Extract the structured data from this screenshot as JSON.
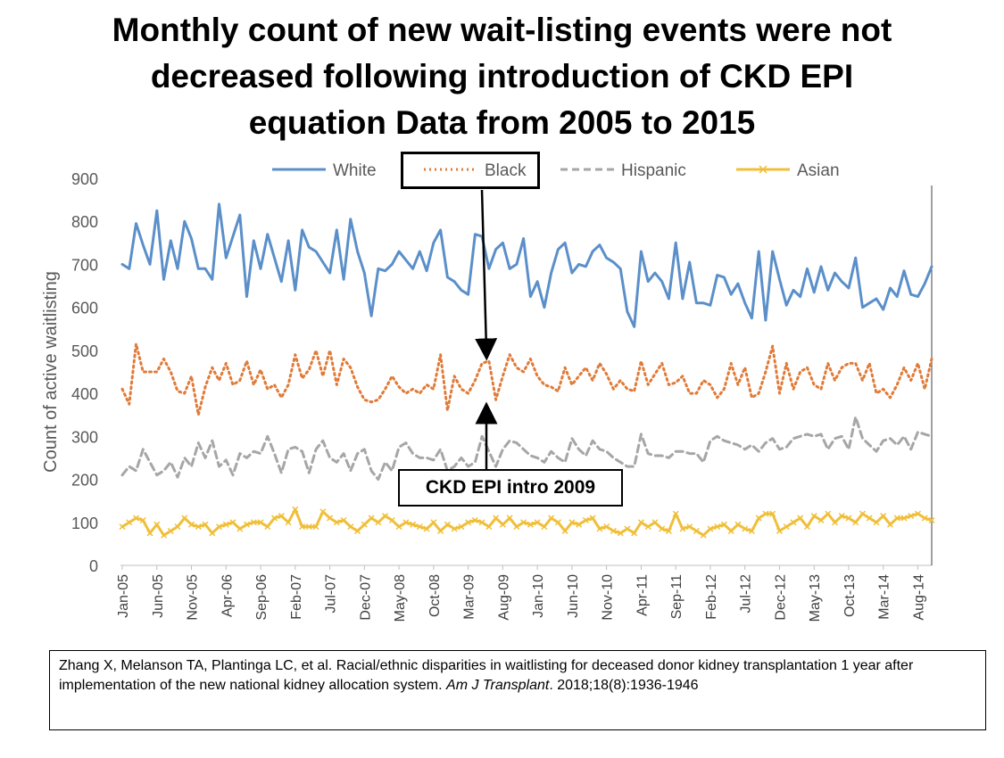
{
  "slide": {
    "title_lines": [
      "Monthly count of new wait-listing events were not",
      "decreased following introduction of CKD EPI",
      "equation  Data from 2005 to 2015"
    ]
  },
  "annotation": {
    "label": "CKD EPI intro 2009"
  },
  "citation": {
    "pre": "Zhang X, Melanson TA, Plantinga LC, et al. Racial/ethnic disparities in waitlisting for deceased donor kidney transplantation 1 year after implementation of the new national kidney allocation system. ",
    "journal": "Am J Transplant",
    "post": ". 2018;18(8):1936-1946"
  },
  "chart_data": {
    "type": "line",
    "title": "",
    "xlabel": "",
    "ylabel": "Count of active waitlisting",
    "ylim": [
      0,
      900
    ],
    "yticks": [
      0,
      100,
      200,
      300,
      400,
      500,
      600,
      700,
      800,
      900
    ],
    "x_start": "Jan-05",
    "n_months": 118,
    "grid": false,
    "legend": "top",
    "categories_shown": [
      "Jan-05",
      "Jun-05",
      "Nov-05",
      "Apr-06",
      "Sep-06",
      "Feb-07",
      "Jul-07",
      "Dec-07",
      "May-08",
      "Oct-08",
      "Mar-09",
      "Aug-09",
      "Jan-10",
      "Jun-10",
      "Nov-10",
      "Apr-11",
      "Sep-11",
      "Feb-12",
      "Jul-12",
      "Dec-12",
      "May-13",
      "Oct-13",
      "Mar-14",
      "Aug-14"
    ],
    "series": [
      {
        "name": "White",
        "color": "#5b8fc9",
        "style": "solid",
        "values": [
          700,
          690,
          795,
          745,
          700,
          825,
          665,
          755,
          690,
          800,
          760,
          690,
          690,
          665,
          840,
          715,
          765,
          815,
          625,
          755,
          690,
          770,
          715,
          660,
          755,
          640,
          780,
          740,
          730,
          705,
          680,
          780,
          665,
          805,
          730,
          680,
          580,
          690,
          685,
          700,
          730,
          710,
          690,
          730,
          685,
          750,
          780,
          670,
          660,
          640,
          630,
          770,
          765,
          690,
          735,
          750,
          690,
          700,
          760,
          625,
          660,
          600,
          680,
          735,
          750,
          680,
          700,
          695,
          730,
          745,
          715,
          705,
          690,
          590,
          555,
          730,
          660,
          680,
          660,
          620,
          750,
          620,
          705,
          610,
          610,
          605,
          675,
          670,
          630,
          655,
          610,
          575,
          730,
          570,
          730,
          665,
          605,
          640,
          625,
          690,
          635,
          695,
          640,
          680,
          660,
          645,
          715,
          600,
          610,
          620,
          595,
          645,
          625,
          685,
          630,
          625,
          655,
          695
        ]
      },
      {
        "name": "Black",
        "color": "#e07b39",
        "style": "dotted",
        "values": [
          410,
          375,
          515,
          450,
          450,
          450,
          480,
          450,
          405,
          400,
          440,
          350,
          415,
          460,
          430,
          470,
          420,
          430,
          475,
          420,
          455,
          410,
          420,
          390,
          420,
          490,
          435,
          455,
          500,
          440,
          500,
          420,
          480,
          460,
          415,
          385,
          380,
          385,
          410,
          440,
          415,
          400,
          410,
          400,
          420,
          410,
          490,
          360,
          440,
          410,
          400,
          430,
          470,
          475,
          385,
          440,
          490,
          460,
          450,
          480,
          440,
          420,
          415,
          405,
          460,
          420,
          440,
          460,
          430,
          470,
          445,
          410,
          430,
          410,
          405,
          475,
          420,
          445,
          470,
          420,
          425,
          440,
          400,
          400,
          430,
          420,
          390,
          410,
          470,
          420,
          460,
          390,
          400,
          450,
          510,
          400,
          470,
          410,
          450,
          460,
          420,
          410,
          470,
          430,
          460,
          470,
          470,
          430,
          470,
          400,
          410,
          390,
          420,
          460,
          430,
          470,
          410,
          480
        ]
      },
      {
        "name": "Hispanic",
        "color": "#a6a6a6",
        "style": "dashed",
        "values": [
          210,
          230,
          220,
          270,
          240,
          210,
          220,
          240,
          205,
          250,
          230,
          285,
          250,
          290,
          230,
          245,
          210,
          260,
          250,
          265,
          260,
          300,
          260,
          215,
          270,
          275,
          265,
          215,
          270,
          290,
          250,
          240,
          260,
          220,
          260,
          270,
          220,
          200,
          240,
          220,
          275,
          285,
          260,
          250,
          250,
          245,
          270,
          220,
          230,
          250,
          230,
          240,
          300,
          265,
          230,
          270,
          290,
          285,
          270,
          255,
          250,
          240,
          265,
          250,
          240,
          295,
          270,
          255,
          290,
          270,
          265,
          250,
          240,
          230,
          230,
          305,
          260,
          255,
          255,
          250,
          265,
          265,
          260,
          260,
          240,
          290,
          300,
          290,
          285,
          280,
          270,
          280,
          265,
          285,
          295,
          270,
          275,
          295,
          300,
          305,
          300,
          305,
          270,
          295,
          300,
          270,
          345,
          295,
          280,
          265,
          290,
          295,
          280,
          300,
          270,
          310,
          305,
          300
        ]
      },
      {
        "name": "Asian",
        "color": "#f0bf3a",
        "style": "solid-x",
        "values": [
          90,
          100,
          110,
          105,
          75,
          95,
          70,
          80,
          90,
          110,
          95,
          90,
          95,
          75,
          90,
          95,
          100,
          85,
          95,
          100,
          100,
          90,
          110,
          115,
          100,
          130,
          90,
          90,
          90,
          125,
          110,
          100,
          105,
          90,
          80,
          95,
          110,
          100,
          115,
          105,
          90,
          100,
          95,
          90,
          85,
          100,
          80,
          95,
          85,
          90,
          100,
          105,
          100,
          90,
          110,
          95,
          110,
          90,
          100,
          95,
          100,
          90,
          110,
          100,
          80,
          100,
          95,
          105,
          110,
          85,
          90,
          80,
          75,
          85,
          75,
          100,
          90,
          100,
          85,
          80,
          120,
          85,
          90,
          80,
          70,
          85,
          90,
          95,
          80,
          95,
          85,
          80,
          110,
          120,
          120,
          80,
          90,
          100,
          110,
          90,
          115,
          105,
          120,
          100,
          115,
          110,
          100,
          120,
          110,
          100,
          115,
          95,
          110,
          110,
          115,
          120,
          110,
          105
        ]
      }
    ]
  }
}
